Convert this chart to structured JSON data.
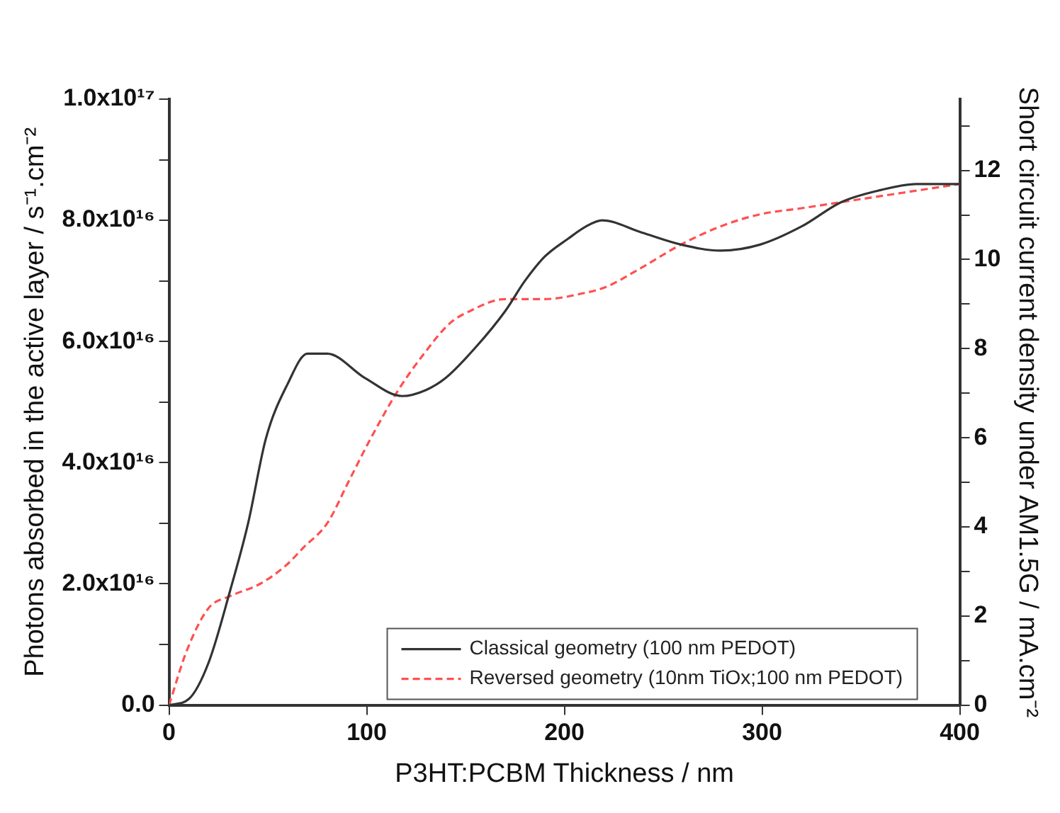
{
  "chart_data": {
    "type": "line",
    "xlabel": "P3HT:PCBM Thickness / nm",
    "ylabel": "Photons absorbed in the active layer / s⁻¹.cm⁻²",
    "y2label": "Short circuit current density under AM1.5G / mA.cm⁻²",
    "xlim": [
      0,
      400
    ],
    "xticks": [
      0,
      100,
      200,
      300,
      400
    ],
    "ylim": [
      0,
      1e+17
    ],
    "yticks": [
      {
        "value": 0,
        "label": "0.0"
      },
      {
        "value": 1e+16,
        "label": null
      },
      {
        "value": 2e+16,
        "label": "2.0x10¹⁶"
      },
      {
        "value": 3e+16,
        "label": null
      },
      {
        "value": 4e+16,
        "label": "4.0x10¹⁶"
      },
      {
        "value": 5e+16,
        "label": null
      },
      {
        "value": 6e+16,
        "label": "6.0x10¹⁶"
      },
      {
        "value": 7e+16,
        "label": null
      },
      {
        "value": 8e+16,
        "label": "8.0x10¹⁶"
      },
      {
        "value": 9e+16,
        "label": null
      },
      {
        "value": 1e+17,
        "label": "1.0x10¹⁷"
      }
    ],
    "y2lim": [
      0,
      13.6
    ],
    "y2ticks": [
      0,
      {
        "value": 1,
        "label": null
      },
      2,
      {
        "value": 3,
        "label": null
      },
      4,
      {
        "value": 5,
        "label": null
      },
      6,
      {
        "value": 7,
        "label": null
      },
      8,
      {
        "value": 9,
        "label": null
      },
      10,
      {
        "value": 11,
        "label": null
      },
      12,
      {
        "value": 13,
        "label": null
      }
    ],
    "grid": false,
    "legend": "bottom right",
    "marker": "none",
    "series": [
      {
        "name": "Classical geometry (100 nm PEDOT)",
        "color": "#333333",
        "line_style": "solid",
        "x": [
          0,
          10,
          20,
          31,
          40,
          49,
          60,
          70,
          80,
          99,
          118,
          130,
          140,
          155,
          170,
          180,
          190,
          202,
          211,
          219,
          239,
          259,
          279,
          299,
          320,
          340,
          360,
          378,
          400
        ],
        "values": [
          0,
          1000000000000000.0,
          7000000000000000.0,
          1.9e+16,
          3e+16,
          4.4e+16,
          5.3e+16,
          5.8e+16,
          5.8e+16,
          5.4e+16,
          5.1e+16,
          5.2e+16,
          5.4e+16,
          5.9e+16,
          6.5e+16,
          7e+16,
          7.4e+16,
          7.7e+16,
          7.9e+16,
          8e+16,
          7.8e+16,
          7.6e+16,
          7.5e+16,
          7.6e+16,
          7.9e+16,
          8.3e+16,
          8.5e+16,
          8.6e+16,
          8.6e+16
        ]
      },
      {
        "name": "Reversed geometry (10nm TiOx;100 nm PEDOT)",
        "color": "#ff5050",
        "line_style": "dashed",
        "x": [
          0,
          9,
          20,
          31,
          46,
          59,
          68,
          80,
          91,
          102,
          116,
          129,
          142,
          152,
          170,
          190,
          210,
          221,
          238,
          259,
          279,
          299,
          320,
          340,
          360,
          380,
          400
        ],
        "values": [
          0,
          9000000000000000.0,
          1.6e+16,
          1.8e+16,
          2e+16,
          2.3e+16,
          2.6e+16,
          3e+16,
          3.7e+16,
          4.4e+16,
          5.2e+16,
          5.8e+16,
          6.3e+16,
          6.5e+16,
          6.7e+16,
          6.7e+16,
          6.8e+16,
          6.9e+16,
          7.2e+16,
          7.6e+16,
          7.9e+16,
          8.1e+16,
          8.2e+16,
          8.3e+16,
          8.4e+16,
          8.5e+16,
          8.6e+16
        ]
      }
    ]
  }
}
